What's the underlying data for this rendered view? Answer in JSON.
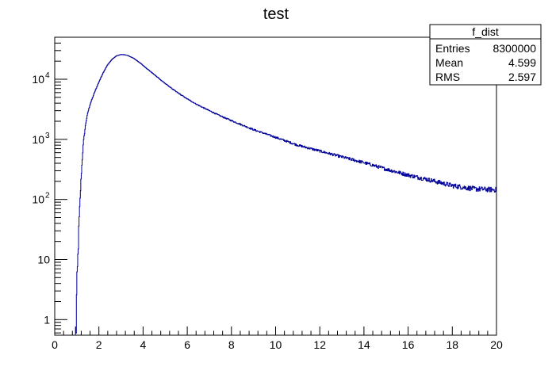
{
  "chart_data": {
    "type": "line",
    "title": "test",
    "xlabel": "",
    "ylabel": "",
    "xlim": [
      0,
      20
    ],
    "ylim": [
      0.55,
      50000
    ],
    "y_scale": "log",
    "grid": false,
    "x_ticks": [
      "0",
      "2",
      "4",
      "6",
      "8",
      "10",
      "12",
      "14",
      "16",
      "18",
      "20"
    ],
    "y_ticks": [
      {
        "value": 1,
        "label": "1"
      },
      {
        "value": 10,
        "label": "10"
      },
      {
        "value": 100,
        "base": "10",
        "exp": "2"
      },
      {
        "value": 1000,
        "base": "10",
        "exp": "3"
      },
      {
        "value": 10000,
        "base": "10",
        "exp": "4"
      }
    ],
    "series": [
      {
        "name": "f_dist",
        "color": "#000099",
        "x": [
          0.95,
          1.0,
          1.1,
          1.2,
          1.3,
          1.4,
          1.5,
          1.6,
          1.8,
          2.0,
          2.2,
          2.4,
          2.6,
          2.8,
          3.0,
          3.2,
          3.4,
          3.6,
          3.8,
          4.0,
          4.5,
          5.0,
          5.5,
          6.0,
          6.5,
          7.0,
          7.5,
          8.0,
          9.0,
          10.0,
          11.0,
          12.0,
          13.0,
          14.0,
          15.0,
          16.0,
          17.0,
          18.0,
          19.0,
          20.0
        ],
        "values": [
          0.55,
          3,
          40,
          250,
          900,
          1800,
          2800,
          3800,
          6000,
          9000,
          13000,
          17500,
          21500,
          24500,
          25800,
          25500,
          24000,
          22000,
          19500,
          17000,
          12000,
          8500,
          6200,
          4700,
          3700,
          3000,
          2450,
          2050,
          1450,
          1080,
          800,
          640,
          510,
          410,
          320,
          255,
          210,
          170,
          150,
          145
        ]
      }
    ]
  },
  "stats_box": {
    "title": "f_dist",
    "rows": [
      {
        "label": "Entries",
        "value": "8300000"
      },
      {
        "label": "Mean",
        "value": "4.599"
      },
      {
        "label": "RMS",
        "value": "2.597"
      }
    ]
  }
}
